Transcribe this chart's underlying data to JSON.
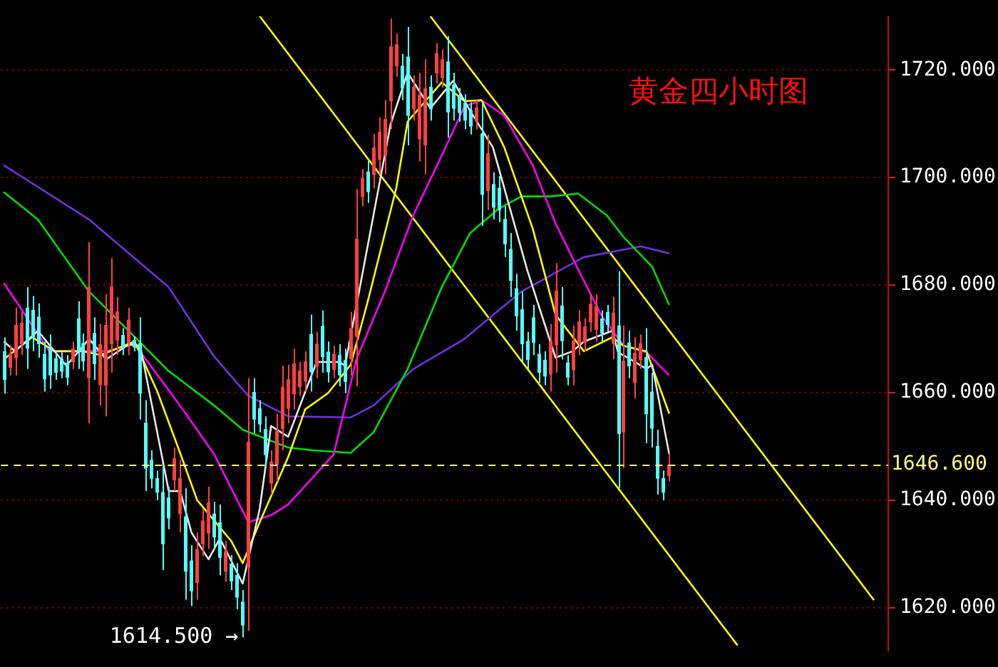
{
  "chart_data": {
    "type": "candlestick",
    "title": "黄金四小时图",
    "categories": [
      null,
      null,
      null,
      null,
      null,
      null,
      null,
      null,
      null,
      null,
      null,
      null,
      null,
      null,
      null,
      null,
      null,
      null,
      null,
      null,
      null,
      null,
      null,
      null,
      null,
      null,
      null,
      null,
      null,
      null,
      null,
      null,
      null,
      null,
      null,
      null,
      null,
      null,
      null,
      null,
      null,
      null,
      null,
      null,
      null,
      null,
      null,
      null,
      null,
      null,
      null,
      null,
      null,
      null,
      null,
      null,
      null,
      null,
      null,
      null,
      null,
      null,
      null,
      null,
      null,
      null,
      null,
      null,
      null,
      null,
      null,
      null,
      null,
      null,
      null,
      null,
      null,
      null,
      null,
      null,
      null,
      null,
      null,
      null,
      null,
      null,
      null,
      null,
      null,
      null,
      null,
      null,
      null,
      null,
      null,
      null,
      null,
      null,
      null,
      null,
      null,
      null,
      null,
      null,
      null,
      null,
      null,
      null,
      null,
      null,
      null,
      null,
      null,
      null,
      null,
      null,
      null,
      null,
      null,
      null,
      null,
      null,
      null,
      null,
      null,
      null,
      null,
      null,
      null,
      null,
      null,
      null,
      null,
      null,
      null,
      null,
      null,
      null,
      null,
      null,
      null,
      null,
      null,
      null,
      null,
      null,
      null,
      null,
      null,
      null,
      null,
      null,
      null,
      null,
      null,
      null
    ],
    "ohlc": [
      [
        1667.7,
        1670.3,
        1659.8,
        1662.4
      ],
      [
        1664.6,
        1668.7,
        1663.2,
        1667.3
      ],
      [
        1666.4,
        1675.8,
        1663.2,
        1672.6
      ],
      [
        1669,
        1675,
        1667,
        1673
      ],
      [
        1675.8,
        1679.6,
        1664.4,
        1668.2
      ],
      [
        1675.4,
        1678,
        1667.7,
        1670.3
      ],
      [
        1674.1,
        1676.6,
        1666.5,
        1669
      ],
      [
        1667.2,
        1669.5,
        1660.2,
        1662.5
      ],
      [
        1668.3,
        1670.8,
        1660.7,
        1663.2
      ],
      [
        1666.4,
        1667.7,
        1662.4,
        1663.7
      ],
      [
        1666.3,
        1667.5,
        1662.7,
        1663.9
      ],
      [
        1665.6,
        1667,
        1661.4,
        1662.8
      ],
      [
        1665.7,
        1669.5,
        1664.4,
        1668.2
      ],
      [
        1673.8,
        1677,
        1664.4,
        1667.6
      ],
      [
        1669.2,
        1671,
        1664,
        1665.8
      ],
      [
        1662.7,
        1688,
        1654.3,
        1679.6
      ],
      [
        1671.1,
        1674,
        1662.4,
        1665.3
      ],
      [
        1661.4,
        1672.8,
        1657.6,
        1669
      ],
      [
        1661.3,
        1678.3,
        1655.6,
        1672.6
      ],
      [
        1669,
        1685,
        1663.7,
        1679.7
      ],
      [
        1669.7,
        1677.8,
        1667,
        1675.1
      ],
      [
        1670.7,
        1672,
        1667,
        1668.3
      ],
      [
        1669.2,
        1675.8,
        1667,
        1673.6
      ],
      [
        1669.8,
        1670.5,
        1667.7,
        1668.4
      ],
      [
        1669.2,
        1674,
        1655,
        1659.8
      ],
      [
        1654.4,
        1658.6,
        1641.7,
        1645.9
      ],
      [
        1647.5,
        1649.3,
        1642.2,
        1644
      ],
      [
        1644.1,
        1645.5,
        1640,
        1641.4
      ],
      [
        1641.5,
        1646.3,
        1627,
        1631.8
      ],
      [
        1640.5,
        1642.5,
        1634.6,
        1636.6
      ],
      [
        1643.7,
        1649.8,
        1641.7,
        1647.8
      ],
      [
        1637.4,
        1647.5,
        1634,
        1644.1
      ],
      [
        1637,
        1642.2,
        1621.5,
        1626.7
      ],
      [
        1628.8,
        1631.6,
        1620.3,
        1623.1
      ],
      [
        1624.6,
        1634,
        1621.5,
        1630.9
      ],
      [
        1631.8,
        1638.4,
        1629.6,
        1636.2
      ],
      [
        1633.8,
        1642.5,
        1630.9,
        1639.6
      ],
      [
        1637.5,
        1639.7,
        1630.9,
        1633.1
      ],
      [
        1635.9,
        1639.2,
        1626,
        1629.3
      ],
      [
        1626.7,
        1632.4,
        1624.8,
        1630.5
      ],
      [
        1628.2,
        1629.8,
        1623.3,
        1624.9
      ],
      [
        1626.1,
        1628.3,
        1619.7,
        1621.9
      ],
      [
        1621.1,
        1623.3,
        1614.5,
        1616.7
      ],
      [
        1627.5,
        1662.7,
        1615.7,
        1650.9
      ],
      [
        1660.1,
        1662.7,
        1652.4,
        1655
      ],
      [
        1657.1,
        1658.6,
        1652.6,
        1654.1
      ],
      [
        1653.2,
        1655.6,
        1646,
        1648.4
      ],
      [
        1643.1,
        1649.3,
        1641,
        1647.2
      ],
      [
        1646.6,
        1656,
        1643.5,
        1652.9
      ],
      [
        1653.2,
        1665,
        1649.3,
        1661.1
      ],
      [
        1657,
        1665.2,
        1654.3,
        1662.5
      ],
      [
        1659.7,
        1668.2,
        1656.9,
        1665.4
      ],
      [
        1661,
        1665.7,
        1659.4,
        1664.1
      ],
      [
        1662.1,
        1667.7,
        1660.2,
        1665.8
      ],
      [
        1670.9,
        1674.5,
        1660.2,
        1663.8
      ],
      [
        1664.9,
        1671.3,
        1662.7,
        1669.1
      ],
      [
        1672.4,
        1675.3,
        1663.7,
        1666.6
      ],
      [
        1667.6,
        1669.5,
        1661.9,
        1663.8
      ],
      [
        1664.2,
        1668.7,
        1662.7,
        1667.2
      ],
      [
        1667,
        1669,
        1661.2,
        1663.2
      ],
      [
        1666.1,
        1668.2,
        1659.9,
        1662
      ],
      [
        1666.2,
        1675,
        1663.2,
        1672
      ],
      [
        1670.4,
        1697.8,
        1661.2,
        1688.6
      ],
      [
        1696.4,
        1701.6,
        1694.7,
        1699.9
      ],
      [
        1701.1,
        1703.1,
        1695.3,
        1697.3
      ],
      [
        1700.5,
        1708.1,
        1698,
        1705.6
      ],
      [
        1703.3,
        1711.2,
        1700.6,
        1708.5
      ],
      [
        1704.1,
        1714.4,
        1700.6,
        1710.9
      ],
      [
        1714.2,
        1729.6,
        1709,
        1724.4
      ],
      [
        1720.7,
        1726.8,
        1718.7,
        1724.8
      ],
      [
        1720.8,
        1723,
        1714.4,
        1716.6
      ],
      [
        1722.5,
        1728,
        1706,
        1711.5
      ],
      [
        1712.7,
        1719,
        1710.6,
        1716.9
      ],
      [
        1707.1,
        1719.5,
        1703,
        1715.4
      ],
      [
        1706,
        1722,
        1700.6,
        1716.6
      ],
      [
        1716.9,
        1719,
        1710.6,
        1712.7
      ],
      [
        1719.4,
        1725,
        1717.5,
        1723.1
      ],
      [
        1718.5,
        1723.8,
        1716.7,
        1722
      ],
      [
        1721.6,
        1726.3,
        1707.4,
        1712.1
      ],
      [
        1717.3,
        1719.5,
        1710.6,
        1712.8
      ],
      [
        1715.1,
        1716.7,
        1710.4,
        1712
      ],
      [
        1713.9,
        1715.5,
        1709,
        1710.6
      ],
      [
        1712.5,
        1714,
        1708,
        1709.5
      ],
      [
        1710.4,
        1714.4,
        1709,
        1713
      ],
      [
        1708.2,
        1714,
        1691,
        1696.8
      ],
      [
        1697.5,
        1708,
        1694,
        1704.5
      ],
      [
        1698.8,
        1701,
        1692.2,
        1694.4
      ],
      [
        1698.1,
        1700.3,
        1691.7,
        1693.9
      ],
      [
        1692.3,
        1694.7,
        1685.2,
        1687.6
      ],
      [
        1686.7,
        1689.7,
        1677.8,
        1680.8
      ],
      [
        1679.4,
        1682.1,
        1671.5,
        1674.2
      ],
      [
        1675.5,
        1678.8,
        1665.7,
        1669
      ],
      [
        1669.6,
        1671.3,
        1664.4,
        1666.1
      ],
      [
        1674,
        1676.3,
        1667,
        1669.3
      ],
      [
        1667.2,
        1669,
        1661.9,
        1663.7
      ],
      [
        1666.1,
        1667.7,
        1661.4,
        1663
      ],
      [
        1663.4,
        1672.8,
        1660.2,
        1669.6
      ],
      [
        1668.8,
        1684.1,
        1663.7,
        1679
      ],
      [
        1676.2,
        1679.6,
        1666.2,
        1669.6
      ],
      [
        1665.6,
        1667,
        1661.4,
        1662.8
      ],
      [
        1664.2,
        1672.5,
        1661.4,
        1669.7
      ],
      [
        1669.1,
        1675.3,
        1667,
        1673.2
      ],
      [
        1669.2,
        1673.8,
        1667.7,
        1672.3
      ],
      [
        1673.1,
        1678.3,
        1671.3,
        1676.5
      ],
      [
        1671.7,
        1678.3,
        1669.5,
        1676.1
      ],
      [
        1673.8,
        1675.3,
        1669.5,
        1671
      ],
      [
        1675,
        1676.3,
        1671.3,
        1672.6
      ],
      [
        1669.1,
        1677.8,
        1666.2,
        1674.9
      ],
      [
        1672.5,
        1682.6,
        1642.2,
        1652.3
      ],
      [
        1652.6,
        1672.5,
        1646,
        1665.9
      ],
      [
        1669.3,
        1671.5,
        1662.7,
        1664.9
      ],
      [
        1661.8,
        1670.3,
        1658.9,
        1667.4
      ],
      [
        1666,
        1670.8,
        1664.4,
        1669.2
      ],
      [
        1666.6,
        1672,
        1650.6,
        1656
      ],
      [
        1660.2,
        1663.7,
        1649.8,
        1653.3
      ],
      [
        1650.1,
        1653.1,
        1641,
        1644
      ],
      [
        1644.1,
        1645.5,
        1640,
        1641.4
      ],
      [
        1644.5,
        1648.8,
        1643.5,
        1646.6
      ],
      null,
      null,
      null,
      null,
      null,
      null,
      null,
      null,
      null,
      null,
      null,
      null,
      null,
      null,
      null,
      null,
      null,
      null,
      null,
      null,
      null,
      null,
      null,
      null,
      null,
      null,
      null,
      null,
      null,
      null,
      null,
      null,
      null,
      null,
      null,
      null,
      null,
      null
    ],
    "colors": [
      "#55ffff",
      "#ff4040",
      "#ff4040",
      "#ff4040",
      "#55ffff",
      "#55ffff",
      "#55ffff",
      "#55ffff",
      "#55ffff",
      "#55ffff",
      "#55ffff",
      "#55ffff",
      "#ff4040",
      "#55ffff",
      "#55ffff",
      "#ff4040",
      "#55ffff",
      "#ff4040",
      "#ff4040",
      "#ff4040",
      "#ff4040",
      "#55ffff",
      "#ff4040",
      "#55ffff",
      "#55ffff",
      "#55ffff",
      "#55ffff",
      "#55ffff",
      "#55ffff",
      "#55ffff",
      "#ff4040",
      "#ff4040",
      "#55ffff",
      "#55ffff",
      "#ff4040",
      "#ff4040",
      "#ff4040",
      "#55ffff",
      "#55ffff",
      "#ff4040",
      "#55ffff",
      "#55ffff",
      "#55ffff",
      "#ff4040",
      "#55ffff",
      "#55ffff",
      "#55ffff",
      "#ff4040",
      "#ff4040",
      "#ff4040",
      "#ff4040",
      "#ff4040",
      "#ff4040",
      "#ff4040",
      "#55ffff",
      "#ff4040",
      "#55ffff",
      "#55ffff",
      "#ff4040",
      "#55ffff",
      "#55ffff",
      "#ff4040",
      "#ff4040",
      "#ff4040",
      "#55ffff",
      "#ff4040",
      "#ff4040",
      "#ff4040",
      "#ff4040",
      "#ff4040",
      "#55ffff",
      "#55ffff",
      "#ff4040",
      "#ff4040",
      "#ff4040",
      "#55ffff",
      "#ff4040",
      "#ff4040",
      "#55ffff",
      "#55ffff",
      "#55ffff",
      "#55ffff",
      "#55ffff",
      "#ff4040",
      "#55ffff",
      "#ff4040",
      "#55ffff",
      "#55ffff",
      "#55ffff",
      "#55ffff",
      "#55ffff",
      "#55ffff",
      "#55ffff",
      "#55ffff",
      "#55ffff",
      "#55ffff",
      "#ff4040",
      "#ff4040",
      "#55ffff",
      "#55ffff",
      "#ff4040",
      "#ff4040",
      "#ff4040",
      "#ff4040",
      "#ff4040",
      "#55ffff",
      "#55ffff",
      "#ff4040",
      "#55ffff",
      "#ff4040",
      "#55ffff",
      "#ff4040",
      "#ff4040",
      "#55ffff",
      "#55ffff",
      "#55ffff",
      "#55ffff",
      "#ff4040",
      null,
      null,
      null,
      null,
      null,
      null,
      null,
      null,
      null,
      null,
      null,
      null,
      null,
      null,
      null,
      null,
      null,
      null,
      null,
      null,
      null,
      null,
      null,
      null,
      null,
      null,
      null,
      null,
      null,
      null,
      null,
      null,
      null,
      null,
      null,
      null,
      null,
      null
    ],
    "series": [
      {
        "type": "line",
        "color": "#e8e8e8",
        "values": [
          1669.5,
          null,
          1667.7,
          null,
          null,
          null,
          1671.5,
          null,
          null,
          null,
          null,
          1665,
          null,
          null,
          null,
          1670,
          null,
          null,
          1666.2,
          null,
          null,
          null,
          1669,
          null,
          1668.7,
          null,
          null,
          null,
          null,
          1641.7,
          null,
          1641.7,
          null,
          1634,
          null,
          null,
          1629,
          null,
          1632.9,
          null,
          null,
          null,
          1624.5,
          null,
          null,
          1638.4,
          null,
          1653.8,
          null,
          null,
          1651.8,
          null,
          null,
          null,
          null,
          1665.7,
          null,
          null,
          null,
          1665.7,
          1665,
          null,
          null,
          null,
          null,
          1693,
          null,
          null,
          1709.9,
          null,
          null,
          1719.5,
          null,
          null,
          null,
          1712.9,
          null,
          null,
          null,
          1718,
          null,
          null,
          1712.4,
          null,
          null,
          null,
          1705.6,
          null,
          null,
          null,
          null,
          null,
          1682.9,
          null,
          null,
          null,
          null,
          1666.5,
          null,
          null,
          1667.7,
          null,
          1669.5,
          null,
          null,
          null,
          null,
          1671.5,
          1667.5,
          null,
          null,
          1665.7,
          null,
          1664.4,
          1665.2,
          null,
          null,
          1648.5,
          null,
          null,
          null,
          null,
          null,
          null,
          null,
          null,
          null,
          null,
          null,
          null,
          null,
          null,
          null,
          null,
          null,
          null,
          null,
          null,
          null,
          null,
          null,
          null,
          null,
          null,
          null,
          null,
          null,
          null,
          null,
          null,
          null,
          null,
          null,
          null,
          null,
          null
        ]
      },
      {
        "type": "line",
        "color": "#ffff00",
        "values": [
          1666.2,
          null,
          null,
          null,
          null,
          1670.3,
          null,
          null,
          null,
          1667.7,
          null,
          null,
          null,
          null,
          1667.7,
          null,
          null,
          1667,
          null,
          null,
          null,
          null,
          null,
          1669.5,
          null,
          null,
          null,
          1660.2,
          null,
          null,
          null,
          1648.8,
          null,
          null,
          1640,
          null,
          null,
          1636.2,
          null,
          null,
          1632.4,
          null,
          1628.3,
          null,
          null,
          1635.9,
          null,
          null,
          null,
          null,
          1648,
          null,
          null,
          1656.9,
          null,
          null,
          null,
          1659.9,
          null,
          null,
          null,
          1665.2,
          null,
          null,
          1677,
          null,
          null,
          null,
          null,
          1698,
          null,
          1710.4,
          null,
          null,
          null,
          null,
          null,
          1717.7,
          null,
          null,
          null,
          1714.2,
          null,
          null,
          1714.4,
          null,
          null,
          null,
          1705.6,
          null,
          null,
          null,
          null,
          1690.5,
          null,
          null,
          null,
          1674.5,
          null,
          null,
          null,
          null,
          1667.7,
          null,
          null,
          null,
          null,
          1670.3,
          null,
          1668.7,
          null,
          null,
          null,
          1667.7,
          null,
          null,
          null,
          1656.1,
          null,
          null,
          null,
          null,
          null,
          null,
          null,
          null,
          null,
          null,
          null,
          null,
          null,
          null,
          null,
          null,
          null,
          null,
          null,
          null,
          null,
          null,
          null,
          null,
          null,
          null,
          null,
          null,
          null,
          null,
          null,
          null,
          null,
          null,
          null,
          null,
          null,
          null
        ]
      },
      {
        "type": "line",
        "color": "#ff00ff",
        "values": [
          1680.4,
          null,
          null,
          null,
          null,
          null,
          null,
          null,
          1667.7,
          null,
          null,
          null,
          null,
          null,
          null,
          null,
          null,
          null,
          1667.7,
          null,
          null,
          null,
          null,
          1669,
          null,
          null,
          null,
          null,
          1661.9,
          null,
          null,
          null,
          1656.1,
          null,
          null,
          null,
          null,
          1648.5,
          null,
          null,
          null,
          null,
          null,
          1635.9,
          null,
          null,
          null,
          1637.2,
          null,
          null,
          1639.2,
          null,
          null,
          null,
          null,
          null,
          null,
          null,
          1648.5,
          null,
          null,
          null,
          1666.2,
          null,
          null,
          null,
          null,
          1678.8,
          null,
          null,
          null,
          null,
          1693,
          null,
          null,
          null,
          null,
          1704.1,
          null,
          null,
          null,
          1713.2,
          null,
          null,
          1714.4,
          null,
          null,
          null,
          1711.5,
          null,
          null,
          null,
          null,
          1702.3,
          null,
          null,
          null,
          1691.5,
          null,
          null,
          null,
          1682.9,
          null,
          null,
          null,
          1674.5,
          null,
          null,
          null,
          1668.7,
          null,
          null,
          null,
          1667.5,
          null,
          null,
          null,
          1663.2,
          null,
          null,
          null,
          null,
          null,
          null,
          null,
          null,
          null,
          null,
          null,
          null,
          null,
          null,
          null,
          null,
          null,
          null,
          null,
          null,
          null,
          null,
          null,
          null,
          null,
          null,
          null,
          null,
          null,
          null,
          null,
          null,
          null,
          null,
          null,
          null,
          null,
          null
        ]
      },
      {
        "type": "line",
        "color": "#00dd00",
        "values": [
          1697.3,
          null,
          null,
          null,
          null,
          null,
          1692.2,
          null,
          null,
          null,
          null,
          null,
          null,
          null,
          null,
          1678.8,
          null,
          null,
          null,
          null,
          null,
          1672.5,
          null,
          null,
          null,
          null,
          null,
          null,
          null,
          1664,
          null,
          null,
          null,
          null,
          null,
          null,
          null,
          1657.6,
          null,
          null,
          null,
          null,
          1653.1,
          null,
          null,
          null,
          null,
          null,
          null,
          null,
          1649.8,
          null,
          null,
          null,
          1649.3,
          null,
          null,
          null,
          null,
          null,
          null,
          1648.8,
          null,
          null,
          null,
          1652.6,
          null,
          null,
          null,
          null,
          null,
          1664.4,
          null,
          null,
          null,
          null,
          null,
          1679.6,
          null,
          null,
          null,
          null,
          1689.7,
          null,
          null,
          null,
          null,
          1694.2,
          null,
          null,
          null,
          1696.5,
          null,
          null,
          null,
          null,
          1696.5,
          null,
          null,
          null,
          null,
          1697,
          null,
          null,
          null,
          null,
          1693,
          null,
          null,
          1688.9,
          null,
          null,
          null,
          null,
          1683.4,
          null,
          null,
          1676.3,
          null,
          null,
          null,
          null,
          null,
          null,
          null,
          null,
          null,
          null,
          null,
          null,
          null,
          null,
          null,
          null,
          null,
          null,
          null,
          null,
          null,
          null,
          null,
          null,
          null,
          null,
          null,
          null,
          null,
          null,
          null,
          null,
          null,
          null,
          null,
          null,
          null,
          null
        ]
      },
      {
        "type": "line",
        "color": "#7030e0",
        "values": [
          1702.3,
          null,
          null,
          null,
          null,
          null,
          null,
          null,
          null,
          null,
          null,
          null,
          null,
          null,
          null,
          1692.2,
          null,
          null,
          null,
          null,
          null,
          null,
          null,
          null,
          null,
          null,
          null,
          null,
          null,
          1679.6,
          null,
          null,
          null,
          null,
          null,
          null,
          null,
          1666.7,
          null,
          null,
          null,
          null,
          null,
          1659.4,
          null,
          null,
          null,
          null,
          null,
          null,
          1655.6,
          null,
          null,
          null,
          null,
          null,
          null,
          null,
          null,
          null,
          null,
          1655.4,
          null,
          null,
          null,
          1657.6,
          null,
          null,
          null,
          null,
          null,
          null,
          1664.4,
          null,
          null,
          null,
          null,
          null,
          null,
          null,
          null,
          1670,
          null,
          null,
          null,
          null,
          null,
          1675.3,
          null,
          null,
          null,
          1678.8,
          null,
          null,
          null,
          null,
          null,
          null,
          null,
          null,
          null,
          null,
          1685.2,
          null,
          null,
          null,
          null,
          null,
          null,
          null,
          null,
          null,
          1687.2,
          null,
          null,
          null,
          null,
          1685.9,
          null,
          null,
          null,
          null,
          null,
          null,
          null,
          null,
          null,
          null,
          null,
          null,
          null,
          null,
          null,
          null,
          null,
          null,
          null,
          null,
          null,
          null,
          null,
          null,
          null,
          null,
          null,
          null,
          null,
          null,
          null,
          null,
          null,
          null,
          null,
          null,
          null,
          null
        ]
      },
      {
        "type": "line",
        "color": "#ffff00",
        "values": [
          null,
          null,
          null,
          null,
          null,
          null,
          null,
          null,
          null,
          null,
          null,
          null,
          null,
          null,
          null,
          null,
          null,
          null,
          null,
          null,
          null,
          null,
          null,
          null,
          null,
          null,
          null,
          null,
          null,
          null,
          null,
          null,
          null,
          null,
          null,
          null,
          null,
          null,
          null,
          null,
          null,
          null,
          null,
          null,
          null,
          1730,
          null,
          null,
          null,
          null,
          null,
          null,
          null,
          null,
          null,
          null,
          null,
          null,
          null,
          null,
          null,
          null,
          null,
          null,
          null,
          null,
          null,
          null,
          null,
          null,
          null,
          null,
          null,
          null,
          null,
          null,
          null,
          null,
          null,
          null,
          null,
          null,
          null,
          null,
          null,
          null,
          null,
          null,
          null,
          null,
          null,
          null,
          null,
          null,
          null,
          null,
          null,
          null,
          null,
          null,
          null,
          null,
          null,
          null,
          null,
          null,
          null,
          null,
          null,
          null,
          null,
          null,
          null,
          null,
          null,
          null,
          null,
          null,
          null,
          null,
          null,
          null,
          null,
          null,
          null,
          null,
          null,
          null,
          null,
          1613,
          null,
          null,
          null,
          null,
          null,
          null,
          null,
          null,
          null,
          null,
          null,
          null,
          null,
          null,
          null,
          null,
          null,
          null,
          null,
          null,
          null,
          null,
          null,
          null,
          null,
          null
        ]
      },
      {
        "type": "line",
        "color": "#ffff00",
        "values": [
          null,
          null,
          null,
          null,
          null,
          null,
          null,
          null,
          null,
          null,
          null,
          null,
          null,
          null,
          null,
          null,
          null,
          null,
          null,
          null,
          null,
          null,
          null,
          null,
          null,
          null,
          null,
          null,
          null,
          null,
          null,
          null,
          null,
          null,
          null,
          null,
          null,
          null,
          null,
          null,
          null,
          null,
          null,
          null,
          null,
          null,
          null,
          null,
          null,
          null,
          null,
          null,
          null,
          null,
          null,
          null,
          null,
          null,
          null,
          null,
          null,
          null,
          null,
          null,
          null,
          null,
          null,
          null,
          null,
          null,
          null,
          null,
          null,
          null,
          null,
          1730,
          null,
          null,
          null,
          null,
          null,
          null,
          null,
          null,
          null,
          null,
          null,
          null,
          null,
          null,
          null,
          null,
          null,
          null,
          null,
          null,
          null,
          null,
          null,
          null,
          null,
          null,
          null,
          null,
          null,
          null,
          null,
          null,
          null,
          null,
          null,
          null,
          null,
          null,
          null,
          null,
          null,
          null,
          null,
          null,
          null,
          null,
          null,
          null,
          null,
          null,
          null,
          null,
          null,
          null,
          null,
          null,
          null,
          null,
          null,
          null,
          null,
          null,
          null,
          null,
          null,
          null,
          null,
          null,
          null,
          null,
          null,
          null,
          null,
          null,
          null,
          null,
          null,
          1621.4,
          null,
          null
        ]
      }
    ],
    "ylim": [
      1612,
      1730
    ],
    "yticks": [
      {
        "value": 1620,
        "label": "1620.000"
      },
      {
        "value": 1640,
        "label": "1640.000"
      },
      {
        "value": 1660,
        "label": "1660.000"
      },
      {
        "value": 1680,
        "label": "1680.000"
      },
      {
        "value": 1700,
        "label": "1700.000"
      },
      {
        "value": 1720,
        "label": "1720.000"
      }
    ],
    "ref_lines": [
      {
        "axis": "y",
        "value": 1646.6,
        "label": "1646.600",
        "color": "#ffff80",
        "line_style": "dashed"
      }
    ],
    "annotations": [
      "1614.500 →"
    ],
    "grid": "y",
    "tick_labels": "y",
    "legend": false
  }
}
